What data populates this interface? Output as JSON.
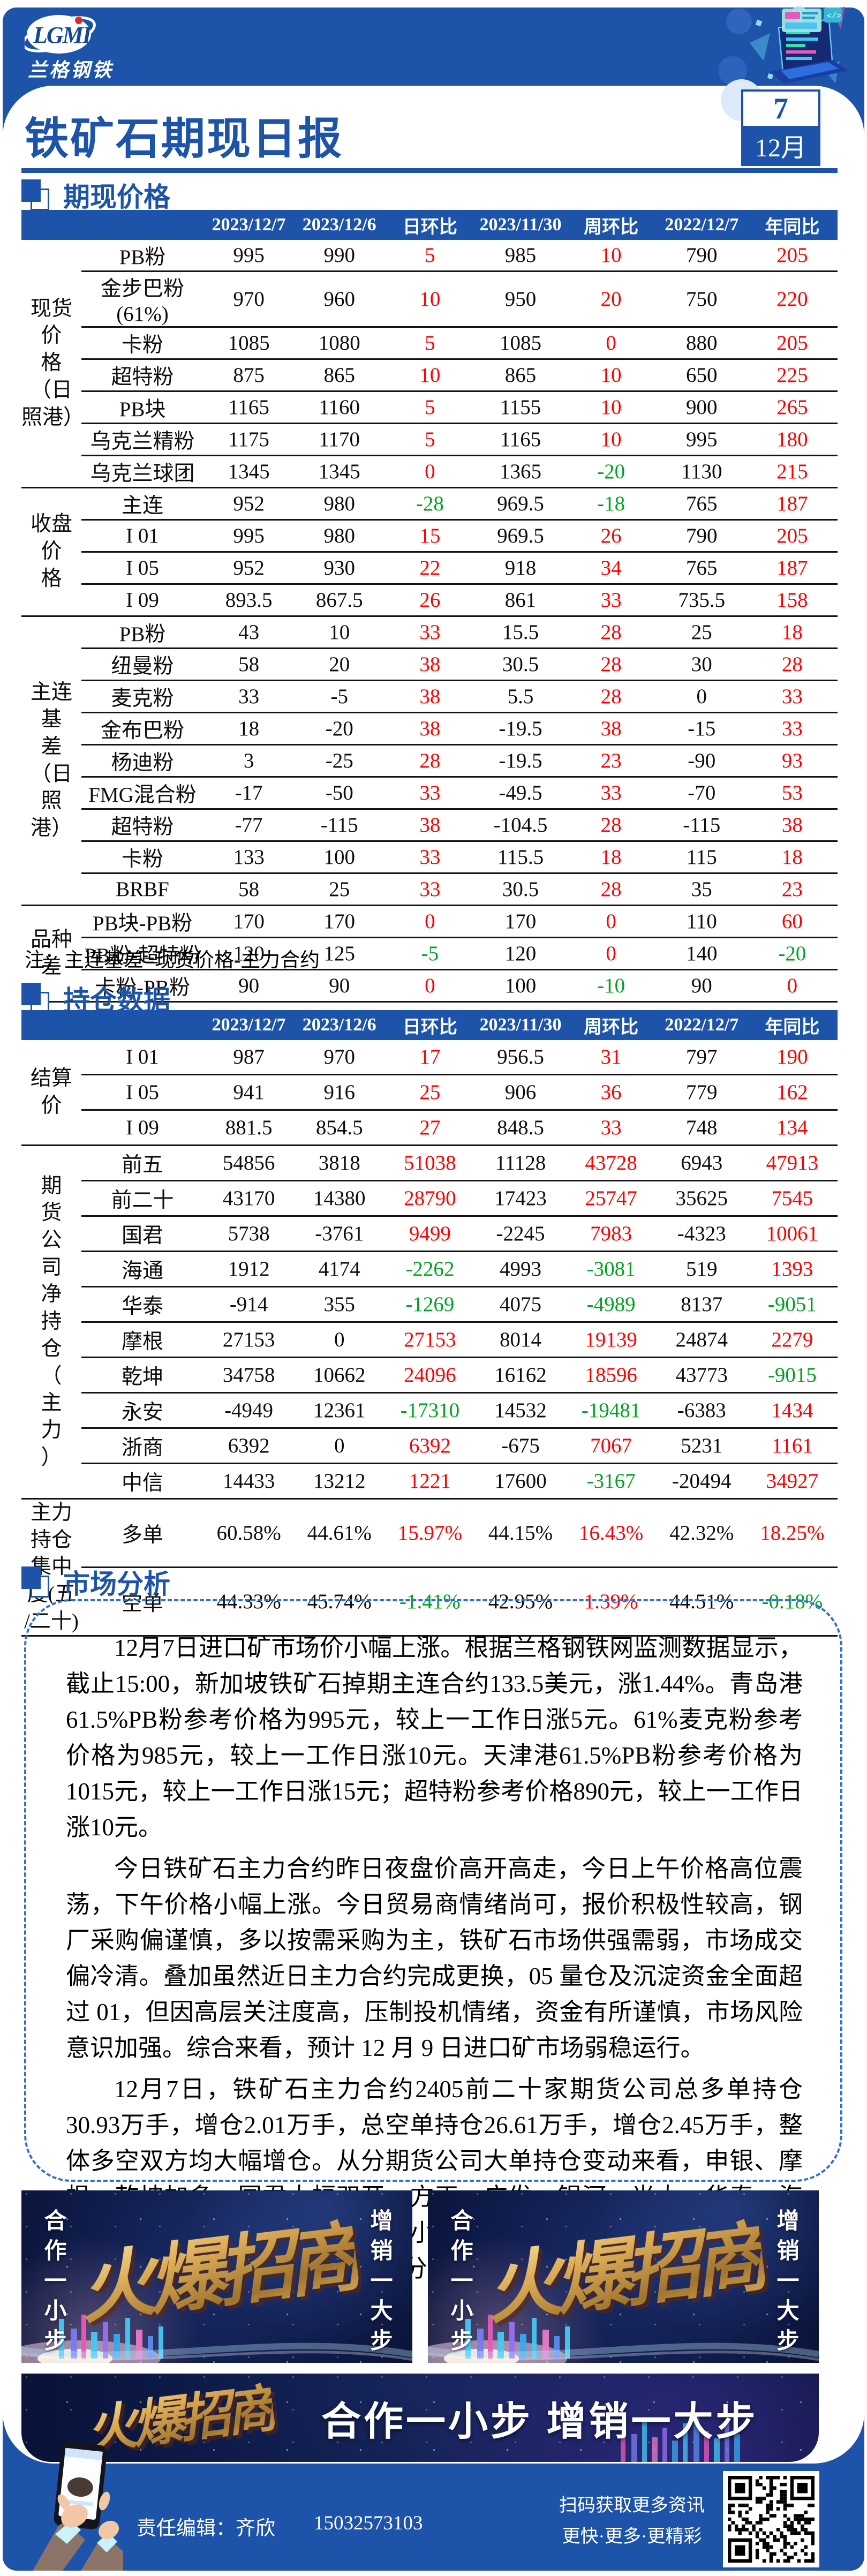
{
  "colors": {
    "primary": "#1d53a8",
    "red": "#fe0000",
    "green": "#00a221",
    "banner_navy": "#101d4d",
    "gold": "#dfaf58"
  },
  "header": {
    "logo_text": "LGMI",
    "brand": "兰格钢铁",
    "title": "铁矿石期现日报",
    "date_day": "7",
    "date_month": "12月"
  },
  "sections": {
    "spot": "期现价格",
    "position": "持仓数据",
    "analysis": "市场分析"
  },
  "table_columns": [
    "2023/12/7",
    "2023/12/6",
    "日环比",
    "2023/11/30",
    "周环比",
    "2022/12/7",
    "年同比"
  ],
  "price_table": {
    "groups": [
      {
        "label": "现货价\n格（日\n照港）",
        "rows": [
          {
            "label": "PB粉",
            "values": [
              "995",
              "990",
              "5",
              "985",
              "10",
              "790",
              "205"
            ]
          },
          {
            "label": "金步巴粉(61%)",
            "values": [
              "970",
              "960",
              "10",
              "950",
              "20",
              "750",
              "220"
            ]
          },
          {
            "label": "卡粉",
            "values": [
              "1085",
              "1080",
              "5",
              "1085",
              "0",
              "880",
              "205"
            ]
          },
          {
            "label": "超特粉",
            "values": [
              "875",
              "865",
              "10",
              "865",
              "10",
              "650",
              "225"
            ]
          },
          {
            "label": "PB块",
            "values": [
              "1165",
              "1160",
              "5",
              "1155",
              "10",
              "900",
              "265"
            ]
          },
          {
            "label": "乌克兰精粉",
            "values": [
              "1175",
              "1170",
              "5",
              "1165",
              "10",
              "995",
              "180"
            ]
          },
          {
            "label": "乌克兰球团",
            "values": [
              "1345",
              "1345",
              "0",
              "1365",
              "-20",
              "1130",
              "215"
            ]
          }
        ]
      },
      {
        "label": "收盘价\n格",
        "rows": [
          {
            "label": "主连",
            "values": [
              "952",
              "980",
              "-28",
              "969.5",
              "-18",
              "765",
              "187"
            ]
          },
          {
            "label": "I 01",
            "values": [
              "995",
              "980",
              "15",
              "969.5",
              "26",
              "790",
              "205"
            ]
          },
          {
            "label": "I 05",
            "values": [
              "952",
              "930",
              "22",
              "918",
              "34",
              "765",
              "187"
            ]
          },
          {
            "label": "I 09",
            "values": [
              "893.5",
              "867.5",
              "26",
              "861",
              "33",
              "735.5",
              "158"
            ]
          }
        ]
      },
      {
        "label": "主连基\n差\n（日照\n港）",
        "rows": [
          {
            "label": "PB粉",
            "values": [
              "43",
              "10",
              "33",
              "15.5",
              "28",
              "25",
              "18"
            ]
          },
          {
            "label": "纽曼粉",
            "values": [
              "58",
              "20",
              "38",
              "30.5",
              "28",
              "30",
              "28"
            ]
          },
          {
            "label": "麦克粉",
            "values": [
              "33",
              "-5",
              "38",
              "5.5",
              "28",
              "0",
              "33"
            ]
          },
          {
            "label": "金布巴粉",
            "values": [
              "18",
              "-20",
              "38",
              "-19.5",
              "38",
              "-15",
              "33"
            ]
          },
          {
            "label": "杨迪粉",
            "values": [
              "3",
              "-25",
              "28",
              "-19.5",
              "23",
              "-90",
              "93"
            ]
          },
          {
            "label": "FMG混合粉",
            "values": [
              "-17",
              "-50",
              "33",
              "-49.5",
              "33",
              "-70",
              "53"
            ]
          },
          {
            "label": "超特粉",
            "values": [
              "-77",
              "-115",
              "38",
              "-104.5",
              "28",
              "-115",
              "38"
            ]
          },
          {
            "label": "卡粉",
            "values": [
              "133",
              "100",
              "33",
              "115.5",
              "18",
              "115",
              "18"
            ]
          },
          {
            "label": "BRBF",
            "values": [
              "58",
              "25",
              "33",
              "30.5",
              "28",
              "35",
              "23"
            ]
          }
        ]
      },
      {
        "label": "品种差",
        "rows": [
          {
            "label": "PB块-PB粉",
            "values": [
              "170",
              "170",
              "0",
              "170",
              "0",
              "110",
              "60"
            ]
          },
          {
            "label": "PB粉-超特粉",
            "values": [
              "120",
              "125",
              "-5",
              "120",
              "0",
              "140",
              "-20"
            ]
          },
          {
            "label": "卡粉-PB粉",
            "values": [
              "90",
              "90",
              "0",
              "100",
              "-10",
              "90",
              "0"
            ]
          }
        ]
      }
    ]
  },
  "note": "注：主连基差=现货价格-主力合约",
  "position_table": {
    "groups": [
      {
        "label": "结算价",
        "rows": [
          {
            "label": "I 01",
            "values": [
              "987",
              "970",
              "17",
              "956.5",
              "31",
              "797",
              "190"
            ]
          },
          {
            "label": "I 05",
            "values": [
              "941",
              "916",
              "25",
              "906",
              "36",
              "779",
              "162"
            ]
          },
          {
            "label": "I 09",
            "values": [
              "881.5",
              "854.5",
              "27",
              "848.5",
              "33",
              "748",
              "134"
            ]
          }
        ]
      },
      {
        "label": "期\n货\n公\n司\n净\n持\n仓\n（\n主\n力\n）",
        "rows": [
          {
            "label": "前五",
            "values": [
              "54856",
              "3818",
              "51038",
              "11128",
              "43728",
              "6943",
              "47913"
            ]
          },
          {
            "label": "前二十",
            "values": [
              "43170",
              "14380",
              "28790",
              "17423",
              "25747",
              "35625",
              "7545"
            ]
          },
          {
            "label": "国君",
            "values": [
              "5738",
              "-3761",
              "9499",
              "-2245",
              "7983",
              "-4323",
              "10061"
            ]
          },
          {
            "label": "海通",
            "values": [
              "1912",
              "4174",
              "-2262",
              "4993",
              "-3081",
              "519",
              "1393"
            ]
          },
          {
            "label": "华泰",
            "values": [
              "-914",
              "355",
              "-1269",
              "4075",
              "-4989",
              "8137",
              "-9051"
            ]
          },
          {
            "label": "摩根",
            "values": [
              "27153",
              "0",
              "27153",
              "8014",
              "19139",
              "24874",
              "2279"
            ]
          },
          {
            "label": "乾坤",
            "values": [
              "34758",
              "10662",
              "24096",
              "16162",
              "18596",
              "43773",
              "-9015"
            ]
          },
          {
            "label": "永安",
            "values": [
              "-4949",
              "12361",
              "-17310",
              "14532",
              "-19481",
              "-6383",
              "1434"
            ]
          },
          {
            "label": "浙商",
            "values": [
              "6392",
              "0",
              "6392",
              "-675",
              "7067",
              "5231",
              "1161"
            ]
          },
          {
            "label": "中信",
            "values": [
              "14433",
              "13212",
              "1221",
              "17600",
              "-3167",
              "-20494",
              "34927"
            ]
          }
        ]
      },
      {
        "label": "主力持仓\n集中度(五\n/二十)",
        "rows": [
          {
            "label": "多单",
            "values": [
              "60.58%",
              "44.61%",
              "15.97%",
              "44.15%",
              "16.43%",
              "42.32%",
              "18.25%"
            ]
          },
          {
            "label": "空单",
            "values": [
              "44.33%",
              "45.74%",
              "-1.41%",
              "42.95%",
              "1.39%",
              "44.51%",
              "-0.18%"
            ]
          }
        ]
      }
    ]
  },
  "analysis": {
    "paragraphs": [
      "12月7日进口矿市场价小幅上涨。根据兰格钢铁网监测数据显示，截止15:00，新加坡铁矿石掉期主连合约133.5美元，涨1.44%。青岛港61.5%PB粉参考价格为995元，较上一工作日涨5元。61%麦克粉参考价格为985元，较上一工作日涨10元。天津港61.5%PB粉参考价格为1015元，较上一工作日涨15元；超特粉参考价格890元，较上一工作日涨10元。",
      "今日铁矿石主力合约昨日夜盘价高开高走，今日上午价格高位震荡，下午价格小幅上涨。今日贸易商情绪尚可，报价积极性较高，钢厂采购偏谨慎，多以按需采购为主，铁矿石市场供强需弱，市场成交偏冷清。叠加虽然近日主力合约完成更换，05 量仓及沉淀资金全面超过 01，但因高层关注度高，压制投机情绪，资金有所谨慎，市场风险意识加强。综合来看，预计 12 月 9 日进口矿市场弱稳运行。",
      "12月7日，铁矿石主力合约2405前二十家期货公司总多单持仓30.93万手，增仓2.01万手，总空单持仓26.61万手，增仓2.45万手，整体多空双方均大幅增仓。从分期货公司大单持仓变动来看，申银、摩根、乾坤加多，国君大幅双开，方正、广发、银河、光大、华泰、海通、永安、一德双开，东证加多小幅减空，国安加多减空，中泰、南华加空，显示今日多空双方出现分歧，均增仓入场。"
    ]
  },
  "promo": {
    "gold_text": "火爆招商",
    "left_vertical": "合作一小步",
    "right_vertical": "增销一大步",
    "wide_slogan": "合作一小步  增销一大步"
  },
  "footer": {
    "editor_label": "责任编辑：齐欣",
    "phone": "15032573103",
    "qr_line1": "扫码获取更多资讯",
    "qr_line2": "更快·更多·更精彩"
  }
}
